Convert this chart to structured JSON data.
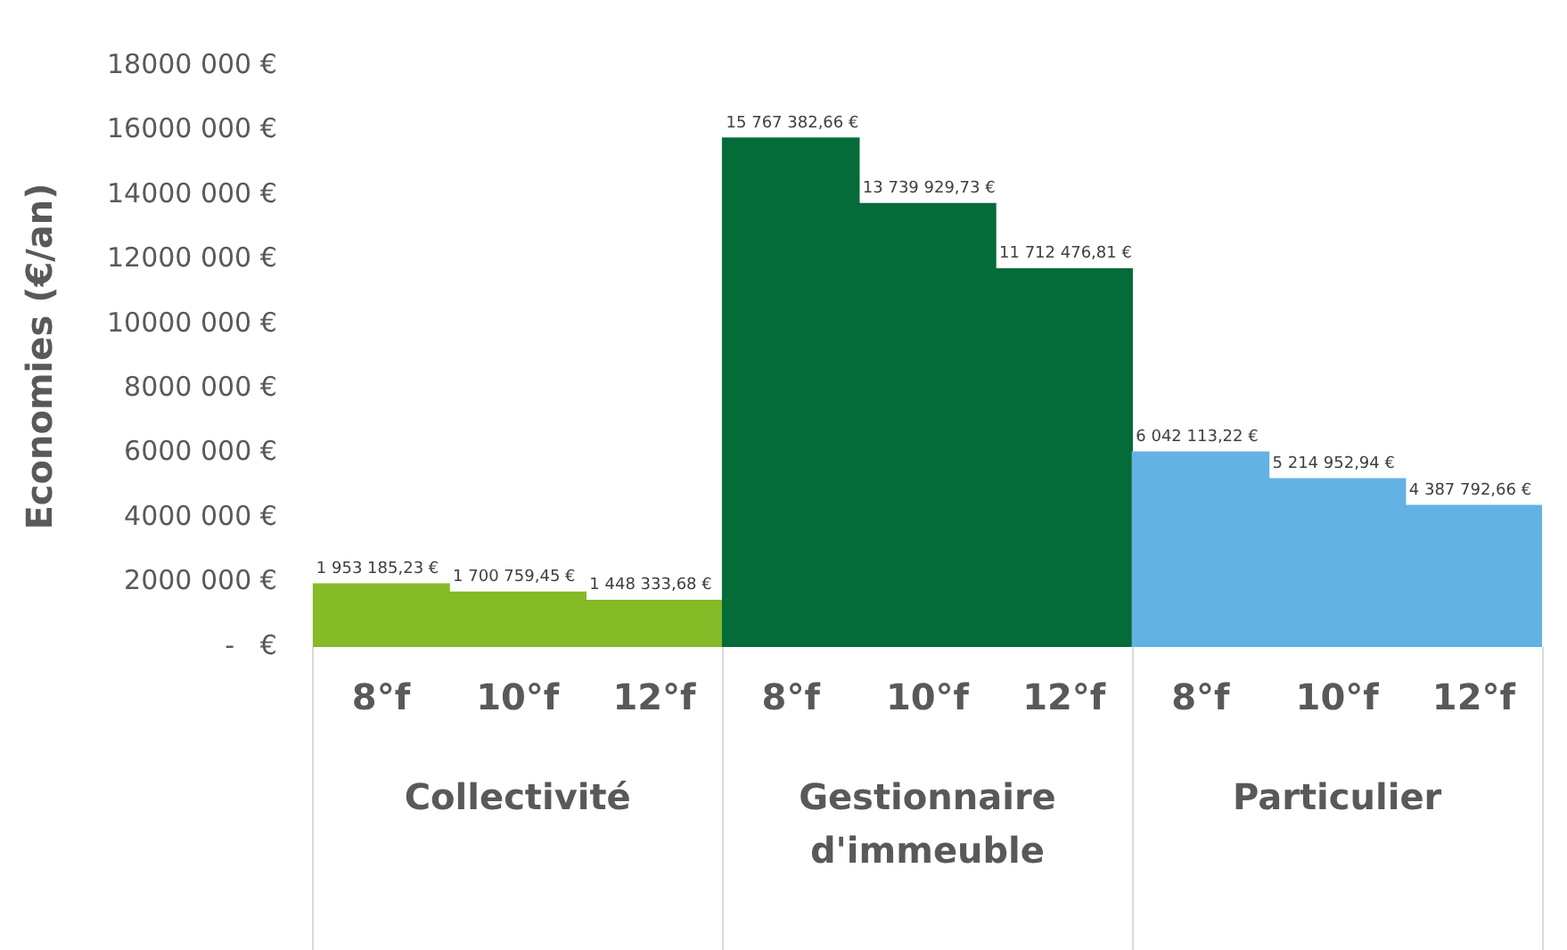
{
  "chart_data": {
    "type": "bar",
    "ylabel": "Economies (€/an)",
    "categories": [
      "8°f",
      "10°f",
      "12°f",
      "8°f",
      "10°f",
      "12°f",
      "8°f",
      "10°f",
      "12°f"
    ],
    "values": [
      1953185.23,
      1700759.45,
      1448333.68,
      15767382.66,
      13739929.73,
      11712476.81,
      6042113.22,
      5214952.94,
      4387792.66
    ],
    "colors": [
      "#84bb26",
      "#84bb26",
      "#84bb26",
      "#056b39",
      "#056b39",
      "#056b39",
      "#62b3e3",
      "#62b3e3",
      "#62b3e3"
    ],
    "value_labels": [
      "1 953 185,23 €",
      "1 700 759,45 €",
      "1 448 333,68 €",
      "15 767 382,66 €",
      "13 739 929,73 €",
      "11 712 476,81 €",
      "6 042 113,22 €",
      "5 214 952,94 €",
      "4 387 792,66 €"
    ],
    "ylim": [
      0,
      18000000
    ],
    "yticks": [
      {
        "value": 0,
        "label": "-   €"
      },
      {
        "value": 2000000,
        "label": "2000 000 €"
      },
      {
        "value": 4000000,
        "label": "4000 000 €"
      },
      {
        "value": 6000000,
        "label": "6000 000 €"
      },
      {
        "value": 8000000,
        "label": "8000 000 €"
      },
      {
        "value": 10000000,
        "label": "10000 000 €"
      },
      {
        "value": 12000000,
        "label": "12000 000 €"
      },
      {
        "value": 14000000,
        "label": "14000 000 €"
      },
      {
        "value": 16000000,
        "label": "16000 000 €"
      },
      {
        "value": 18000000,
        "label": "18000 000 €"
      }
    ],
    "annotations": [
      "Collectivité",
      "Gestionnaire d'immeuble",
      "Particulier"
    ]
  }
}
